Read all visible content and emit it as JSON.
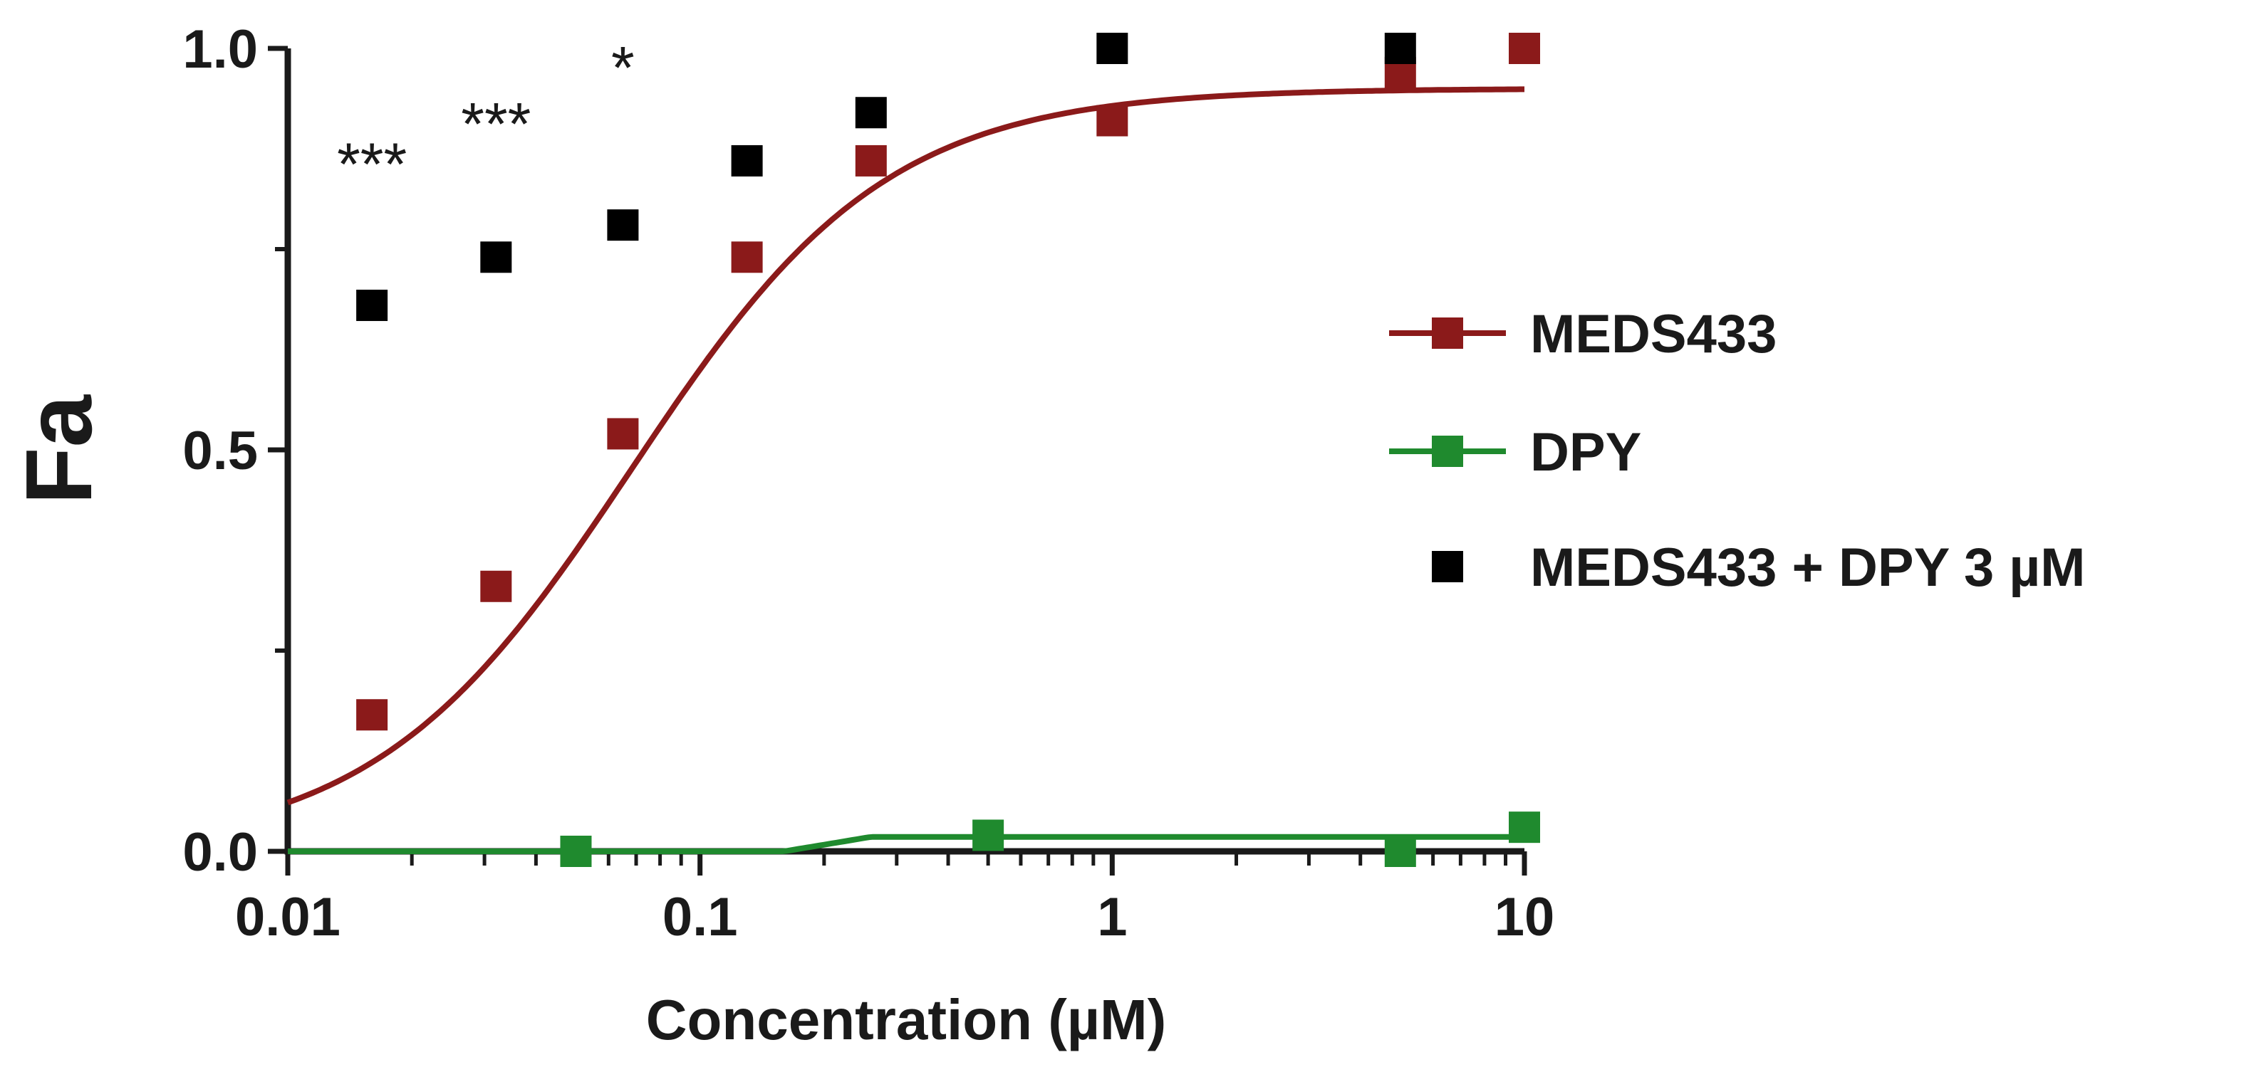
{
  "chart_data": {
    "type": "scatter",
    "title": "",
    "xlabel": "Concentration (µM)",
    "ylabel": "Fa",
    "xscale": "log",
    "xlim": [
      0.01,
      10
    ],
    "ylim": [
      0,
      1
    ],
    "x_ticks": [
      {
        "value": 0.01,
        "label": "0.01"
      },
      {
        "value": 0.1,
        "label": "0.1"
      },
      {
        "value": 1,
        "label": "1"
      },
      {
        "value": 10,
        "label": "10"
      }
    ],
    "y_ticks": [
      {
        "value": 0.0,
        "label": "0.0"
      },
      {
        "value": 0.5,
        "label": "0.5"
      },
      {
        "value": 1.0,
        "label": "1.0"
      }
    ],
    "y_minor_ticks": [
      0.25,
      0.75
    ],
    "grid": false,
    "legend_position": "right",
    "series": [
      {
        "name": "MEDS433",
        "color": "#8b1a1a",
        "marker": "square",
        "line": true,
        "x": [
          0.016,
          0.032,
          0.065,
          0.13,
          0.26,
          1,
          5,
          10
        ],
        "y": [
          0.17,
          0.33,
          0.52,
          0.74,
          0.86,
          0.91,
          0.97,
          1.0
        ],
        "fit": {
          "model": "sigmoid",
          "bottom": 0.0,
          "top": 0.95,
          "ec50": 0.068,
          "hill": 1.4,
          "x_start": 0.01,
          "x_end": 10
        }
      },
      {
        "name": "DPY",
        "color": "#1f8a2e",
        "marker": "square",
        "line": true,
        "x": [
          0.05,
          0.5,
          5,
          10
        ],
        "y": [
          0.0,
          0.02,
          0.0,
          0.03
        ],
        "fit": {
          "model": "step",
          "bottom": 0.0,
          "top": 0.018,
          "x_break_start": 0.16,
          "x_break_end": 0.26,
          "x_start": 0.01,
          "x_end": 10
        }
      },
      {
        "name": "MEDS433 + DPY 3 µM",
        "color": "#000000",
        "marker": "square",
        "line": false,
        "x": [
          0.016,
          0.032,
          0.065,
          0.13,
          0.26,
          1,
          5
        ],
        "y": [
          0.68,
          0.74,
          0.78,
          0.86,
          0.92,
          1.0,
          1.0
        ]
      }
    ],
    "annotations": [
      {
        "text": "***",
        "x": 0.016,
        "y": 0.88
      },
      {
        "text": "***",
        "x": 0.032,
        "y": 0.93
      },
      {
        "text": "*",
        "x": 0.065,
        "y": 1.0
      }
    ]
  }
}
